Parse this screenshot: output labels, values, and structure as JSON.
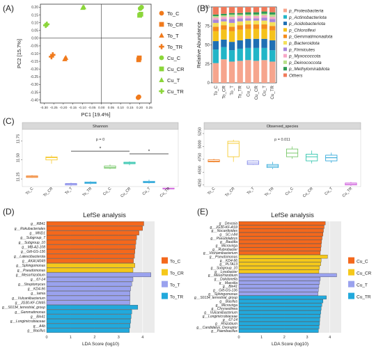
{
  "panel_labels": [
    "(A)",
    "(B)",
    "(C)",
    "(D)",
    "(E)"
  ],
  "colors": {
    "To_C": "#f07a1c",
    "To_CR": "#f07a1c",
    "To_T": "#f07a1c",
    "To_TR": "#f07a1c",
    "Cu_C": "#8bd63a",
    "Cu_CR": "#8bd63a",
    "Cu_T": "#8bd63a",
    "Cu_TR": "#8bd63a",
    "C_box": [
      "#f07a1c",
      "#f5c51b",
      "#7a7fe6",
      "#1fa2d6",
      "#6ac25a",
      "#1bbfa5",
      "#1ba0d6",
      "#cc55d9"
    ],
    "lefse": {
      "C": "#f4681c",
      "CR": "#f5c81b",
      "T": "#9aa2ee",
      "TR": "#22a9dc"
    }
  },
  "chart_data": [
    {
      "type": "scatter",
      "xlabel": "PC1 [19.4%]",
      "ylabel": "PC2 [15.7%]",
      "xlim": [
        -0.32,
        0.26
      ],
      "ylim": [
        -0.42,
        0.22
      ],
      "xticks": [
        "-0.30",
        "-0.25",
        "-0.20",
        "-0.15",
        "-0.10",
        "-0.05",
        "0.00",
        "0.05",
        "0.10",
        "0.15",
        "0.20",
        "0.25"
      ],
      "xtick_values": [
        -0.3,
        -0.25,
        -0.2,
        -0.15,
        -0.1,
        -0.05,
        0.0,
        0.05,
        0.1,
        0.15,
        0.2,
        0.25
      ],
      "yticks": [
        "0.20",
        "0.15",
        "0.10",
        "0.05",
        "0.00",
        "-0.05",
        "-0.10",
        "-0.15",
        "-0.20",
        "-0.25",
        "-0.30",
        "-0.35",
        "-0.40"
      ],
      "ytick_values": [
        0.2,
        0.15,
        0.1,
        0.05,
        0.0,
        -0.05,
        -0.1,
        -0.15,
        -0.2,
        -0.25,
        -0.3,
        -0.35,
        -0.4
      ],
      "legend_position": "right",
      "series": [
        {
          "name": "To_C",
          "marker": "circle",
          "x": [
            0.192,
            0.196
          ],
          "y": [
            -0.385,
            -0.38
          ]
        },
        {
          "name": "To_CR",
          "marker": "square",
          "x": [
            0.195,
            0.198
          ],
          "y": [
            -0.14,
            -0.128
          ]
        },
        {
          "name": "To_T",
          "marker": "triangle",
          "x": [
            -0.192,
            -0.187
          ],
          "y": [
            -0.135,
            -0.127
          ]
        },
        {
          "name": "To_TR",
          "marker": "plus",
          "x": [
            -0.262,
            -0.255
          ],
          "y": [
            -0.12,
            -0.108
          ]
        },
        {
          "name": "Cu_C",
          "marker": "circle",
          "x": [
            0.203,
            0.21
          ],
          "y": [
            0.192,
            0.2
          ]
        },
        {
          "name": "Cu_CR",
          "marker": "square",
          "x": [
            0.2,
            0.206
          ],
          "y": [
            0.148,
            0.155
          ]
        },
        {
          "name": "Cu_T",
          "marker": "triangle",
          "x": [
            -0.098,
            -0.093
          ],
          "y": [
            0.197,
            0.201
          ]
        },
        {
          "name": "Cu_TR",
          "marker": "plus",
          "x": [
            -0.292,
            -0.286
          ],
          "y": [
            0.083,
            0.09
          ]
        }
      ]
    },
    {
      "type": "bar",
      "stacked": true,
      "ylabel": "Relative Abundance",
      "ylim": [
        0,
        100
      ],
      "yticks": [
        "0",
        "25",
        "50",
        "75",
        "100"
      ],
      "ytick_values": [
        0,
        25,
        50,
        75,
        100
      ],
      "categories": [
        "To_C",
        "To_CR",
        "To_T",
        "To_TR",
        "Cu_C",
        "Cu_CR",
        "Cu_T",
        "Cu_TR"
      ],
      "legend_position": "right",
      "series": [
        {
          "name": "p_Proteobacteria",
          "color": "#f6a58d",
          "values": [
            26,
            31,
            28,
            29,
            30,
            29,
            30,
            28
          ]
        },
        {
          "name": "p_Actinobacteriota",
          "color": "#22b5c7",
          "values": [
            18,
            16,
            15,
            16,
            16,
            17,
            16,
            15
          ]
        },
        {
          "name": "p_Acidobacteriota",
          "color": "#1f6fb3",
          "values": [
            11,
            10,
            11,
            11,
            12,
            12,
            12,
            13
          ]
        },
        {
          "name": "p_Chloroflexi",
          "color": "#f5c21b",
          "values": [
            13,
            13,
            14,
            14,
            13,
            13,
            13,
            13
          ]
        },
        {
          "name": "p_Gemmatimonadota",
          "color": "#f48c1c",
          "values": [
            6,
            6,
            6,
            6,
            6,
            6,
            6,
            6
          ]
        },
        {
          "name": "p_Bacteroidota",
          "color": "#f4e05a",
          "values": [
            5,
            5,
            5,
            5,
            5,
            5,
            5,
            5
          ]
        },
        {
          "name": "p_Firmicutes",
          "color": "#a786d9",
          "values": [
            4,
            3,
            5,
            4,
            3,
            3,
            4,
            4
          ]
        },
        {
          "name": "p_Myxococcota",
          "color": "#f7a7c7",
          "values": [
            3,
            3,
            3,
            3,
            3,
            3,
            3,
            3
          ]
        },
        {
          "name": "p_Deinococcota",
          "color": "#b8e08a",
          "values": [
            2,
            2,
            3,
            2,
            2,
            2,
            2,
            3
          ]
        },
        {
          "name": "p_Methylomirabilota",
          "color": "#2e9a55",
          "values": [
            2,
            2,
            2,
            2,
            3,
            3,
            3,
            3
          ]
        },
        {
          "name": "Others",
          "color": "#f07a5a",
          "values": [
            10,
            9,
            8,
            8,
            7,
            7,
            6,
            7
          ]
        }
      ]
    },
    {
      "type": "box",
      "title": "Shannon",
      "ylim": [
        11.15,
        11.9
      ],
      "yticks": [
        "11.25",
        "11.50",
        "11.75"
      ],
      "ytick_values": [
        11.25,
        11.5,
        11.75
      ],
      "categories": [
        "To_C",
        "To_CR",
        "To_T",
        "To_TR",
        "Cu_C",
        "Cu_CR",
        "Cu_T",
        "Cu_TR"
      ],
      "stats": [
        {
          "min": 11.265,
          "q1": 11.27,
          "median": 11.28,
          "q3": 11.29,
          "max": 11.3
        },
        {
          "min": 11.45,
          "q1": 11.5,
          "median": 11.53,
          "q3": 11.54,
          "max": 11.56
        },
        {
          "min": 11.16,
          "q1": 11.17,
          "median": 11.18,
          "q3": 11.19,
          "max": 11.2
        },
        {
          "min": 11.18,
          "q1": 11.19,
          "median": 11.2,
          "q3": 11.21,
          "max": 11.22
        },
        {
          "min": 11.38,
          "q1": 11.39,
          "median": 11.4,
          "q3": 11.42,
          "max": 11.44
        },
        {
          "min": 11.43,
          "q1": 11.45,
          "median": 11.46,
          "q3": 11.47,
          "max": 11.48
        },
        {
          "min": 11.19,
          "q1": 11.2,
          "median": 11.21,
          "q3": 11.22,
          "max": 11.24
        },
        {
          "min": 11.11,
          "q1": 11.12,
          "median": 11.12,
          "q3": 11.13,
          "max": 11.14
        }
      ],
      "annotation": "p = 0",
      "significance": [
        {
          "from": "To_T",
          "to": "Cu_CR",
          "level": 11.615,
          "label": "*"
        },
        {
          "from": "Cu_CR",
          "to": "Cu_TR",
          "level": 11.58,
          "label": "*"
        }
      ]
    },
    {
      "type": "box",
      "title": "Observed_species",
      "ylim": [
        4220,
        5330
      ],
      "yticks": [
        "4250",
        "4500",
        "4750",
        "5000",
        "5250"
      ],
      "ytick_values": [
        4250,
        4500,
        4750,
        5000,
        5250
      ],
      "categories": [
        "To_C",
        "To_CR",
        "To_T",
        "To_TR",
        "Cu_C",
        "Cu_CR",
        "Cu_T",
        "Cu_TR"
      ],
      "stats": [
        {
          "min": 4690,
          "q1": 4700,
          "median": 4715,
          "q3": 4740,
          "max": 4760
        },
        {
          "min": 4700,
          "q1": 4800,
          "median": 5060,
          "q3": 5100,
          "max": 5130
        },
        {
          "min": 4640,
          "q1": 4650,
          "median": 4680,
          "q3": 4720,
          "max": 4730
        },
        {
          "min": 4560,
          "q1": 4590,
          "median": 4620,
          "q3": 4650,
          "max": 4700
        },
        {
          "min": 4760,
          "q1": 4800,
          "median": 4870,
          "q3": 4950,
          "max": 5000
        },
        {
          "min": 4670,
          "q1": 4720,
          "median": 4800,
          "q3": 4850,
          "max": 4920
        },
        {
          "min": 4680,
          "q1": 4720,
          "median": 4780,
          "q3": 4830,
          "max": 4880
        },
        {
          "min": 4230,
          "q1": 4250,
          "median": 4270,
          "q3": 4290,
          "max": 4310
        }
      ],
      "annotation": "p = 0.011"
    },
    {
      "type": "bar",
      "orientation": "horizontal",
      "title": "LefSe analysis",
      "xlabel": "LDA Score (log10)",
      "xlim": [
        0,
        4.5
      ],
      "xticks": [
        "0",
        "1",
        "2",
        "3",
        "4"
      ],
      "xtick_values": [
        0,
        1,
        2,
        3,
        4
      ],
      "legend": [
        "To_C",
        "To_CR",
        "To_T",
        "To_TR"
      ],
      "legend_position": "right",
      "categories": [
        "g__RB41",
        "g__Rokubacteriales",
        "g__MND1",
        "g__Subgroup_7",
        "g__Subgroup_10",
        "g__MB-A2-108",
        "g__Gitt-GS-136",
        "g__Latescibacterota",
        "g__AKAU4049",
        "g__Sphingomonas",
        "g__Pseudomonas",
        "g__Mesorhizobium",
        "g__67-14",
        "g__Streptomyces",
        "g__KD4-96",
        "g__Iamia",
        "g__Vulcaniibacterium",
        "g__JG30-KF-CM45",
        "g__S0134_terrestrial_group",
        "g__Gemmatimonas",
        "g__Bin41",
        "g__Longimicrobiaceae",
        "g__A4b",
        "g__Bacillus"
      ],
      "groups": [
        "To_C",
        "To_C",
        "To_C",
        "To_C",
        "To_C",
        "To_C",
        "To_C",
        "To_C",
        "To_C",
        "To_CR",
        "To_CR",
        "To_T",
        "To_T",
        "To_T",
        "To_T",
        "To_T",
        "To_T",
        "To_T",
        "To_TR",
        "To_TR",
        "To_TR",
        "To_TR",
        "To_TR",
        "To_TR"
      ],
      "values": [
        4.05,
        4.0,
        3.85,
        3.75,
        3.72,
        3.7,
        3.68,
        3.66,
        3.62,
        3.68,
        3.6,
        4.35,
        3.6,
        3.55,
        3.5,
        3.48,
        3.48,
        3.47,
        3.8,
        3.55,
        3.52,
        3.5,
        3.48,
        3.45
      ]
    },
    {
      "type": "bar",
      "orientation": "horizontal",
      "title": "LefSe analysis",
      "xlabel": "LDA Score (log10)",
      "xlim": [
        0,
        4.5
      ],
      "xticks": [
        "0",
        "1",
        "2",
        "3",
        "4"
      ],
      "xtick_values": [
        0,
        1,
        2,
        3,
        4
      ],
      "legend": [
        "Cu_C",
        "Cu_CR",
        "Cu_T",
        "Cu_TR"
      ],
      "legend_position": "right",
      "categories": [
        "g__Devosia",
        "g__JG30-KF-AS9",
        "g__Nocardioides",
        "g__SC-I-84",
        "g__Pseudolabrys",
        "g__Bauldia",
        "g__Microvirga",
        "g__Rubrobacter",
        "g__Vicinamibacterium",
        "g__Pseudomonas",
        "g__KD4-96",
        "g__PLTA13",
        "g__Subgroup_10",
        "g__Lysobacter",
        "g__Mesorhizobium",
        "g__Dokdonella",
        "g__Massilia",
        "g__Bin41",
        "g__Gitt-GS-136",
        "g__Sphingomonas",
        "g__S0134_terrestrial_group",
        "g__Bacillus",
        "g__Microvirga",
        "g__Chryseolinea",
        "g__Vulcaniibacterium",
        "g__Longimicrobiaceae",
        "g__67-14",
        "g__Rhizobium",
        "g__Candidatus_Ovoruptor",
        "g__Paenibacillus"
      ],
      "groups": [
        "Cu_C",
        "Cu_C",
        "Cu_C",
        "Cu_C",
        "Cu_C",
        "Cu_C",
        "Cu_C",
        "Cu_C",
        "Cu_C",
        "Cu_CR",
        "Cu_CR",
        "Cu_CR",
        "Cu_CR",
        "Cu_CR",
        "Cu_T",
        "Cu_T",
        "Cu_T",
        "Cu_T",
        "Cu_T",
        "Cu_T",
        "Cu_TR",
        "Cu_TR",
        "Cu_TR",
        "Cu_TR",
        "Cu_TR",
        "Cu_TR",
        "Cu_TR",
        "Cu_TR",
        "Cu_TR",
        "Cu_TR"
      ],
      "values": [
        3.8,
        3.75,
        3.72,
        3.7,
        3.66,
        3.64,
        3.62,
        3.6,
        3.58,
        3.9,
        3.62,
        3.6,
        3.55,
        3.52,
        4.3,
        3.58,
        3.55,
        3.52,
        3.5,
        3.48,
        3.85,
        3.7,
        3.65,
        3.62,
        3.6,
        3.58,
        3.56,
        3.55,
        3.53,
        3.5
      ]
    }
  ]
}
